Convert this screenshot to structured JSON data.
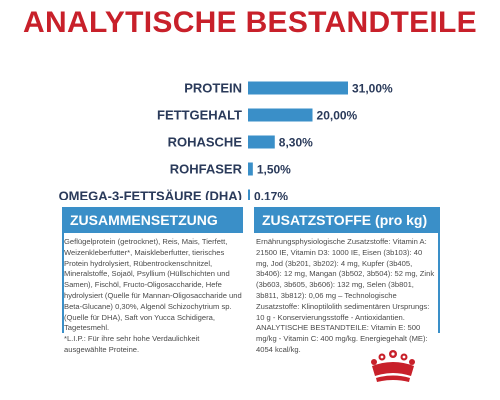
{
  "title": "ANALYTISCHE BESTANDTEILE",
  "colors": {
    "title": "#c8202a",
    "bar": "#3a8fc8",
    "text": "#2a3a5a",
    "brand": "#c8202a"
  },
  "chart_data": {
    "type": "bar",
    "orientation": "horizontal",
    "categories": [
      "PROTEIN",
      "FETTGEHALT",
      "ROHASCHE",
      "ROHFASER",
      "OMEGA-3-FETTSÄURE (DHA)"
    ],
    "values": [
      31.0,
      20.0,
      8.3,
      1.5,
      0.17
    ],
    "value_labels": [
      "31,00%",
      "20,00%",
      "8,30%",
      "1,50%",
      "0,17%"
    ],
    "unit": "%"
  },
  "composition": {
    "header": "ZUSAMMENSETZUNG",
    "text": "Geflügelprotein (getrocknet), Reis, Mais, Tierfett, Weizenkleberfutter*, Maiskleberfutter, tierisches Protein hydrolysiert, Rübentrockenschnitzel, Mineralstoffe, Sojaöl, Psyllium (Hüllschichten und Samen), Fischöl, Fructo-Oligosaccharide, Hefe hydrolysiert (Quelle für Mannan-Oligosaccharide und Beta-Glucane) 0,30%, Algenöl Schizochytrium sp. (Quelle für DHA), Saft von Yucca Schidigera, Tagetesmehl.",
    "note": "*L.I.P.: Für ihre sehr hohe Verdaulichkeit ausgewählte Proteine."
  },
  "additives": {
    "header": "ZUSATZSTOFFE (pro kg)",
    "text": "Ernährungsphysiologische Zusatzstoffe: Vitamin A: 21500 IE, Vitamin D3: 1000 IE, Eisen (3b103): 40 mg, Jod (3b201, 3b202): 4 mg, Kupfer (3b405, 3b406): 12 mg, Mangan (3b502, 3b504): 52 mg, Zink (3b603, 3b605, 3b606): 132 mg, Selen (3b801, 3b811, 3b812): 0,06 mg – Technologische Zusatzstoffe: Klinoptilolith sedimentären Ursprungs: 10 g - Konservierungsstoffe - Antioxidantien.",
    "note": "ANALYTISCHE BESTANDTEILE: Vitamin E: 500 mg/kg - Vitamin C: 400 mg/kg. Energiegehalt (ME): 4054 kcal/kg."
  },
  "logo": {
    "name": "crown-logo-icon"
  }
}
